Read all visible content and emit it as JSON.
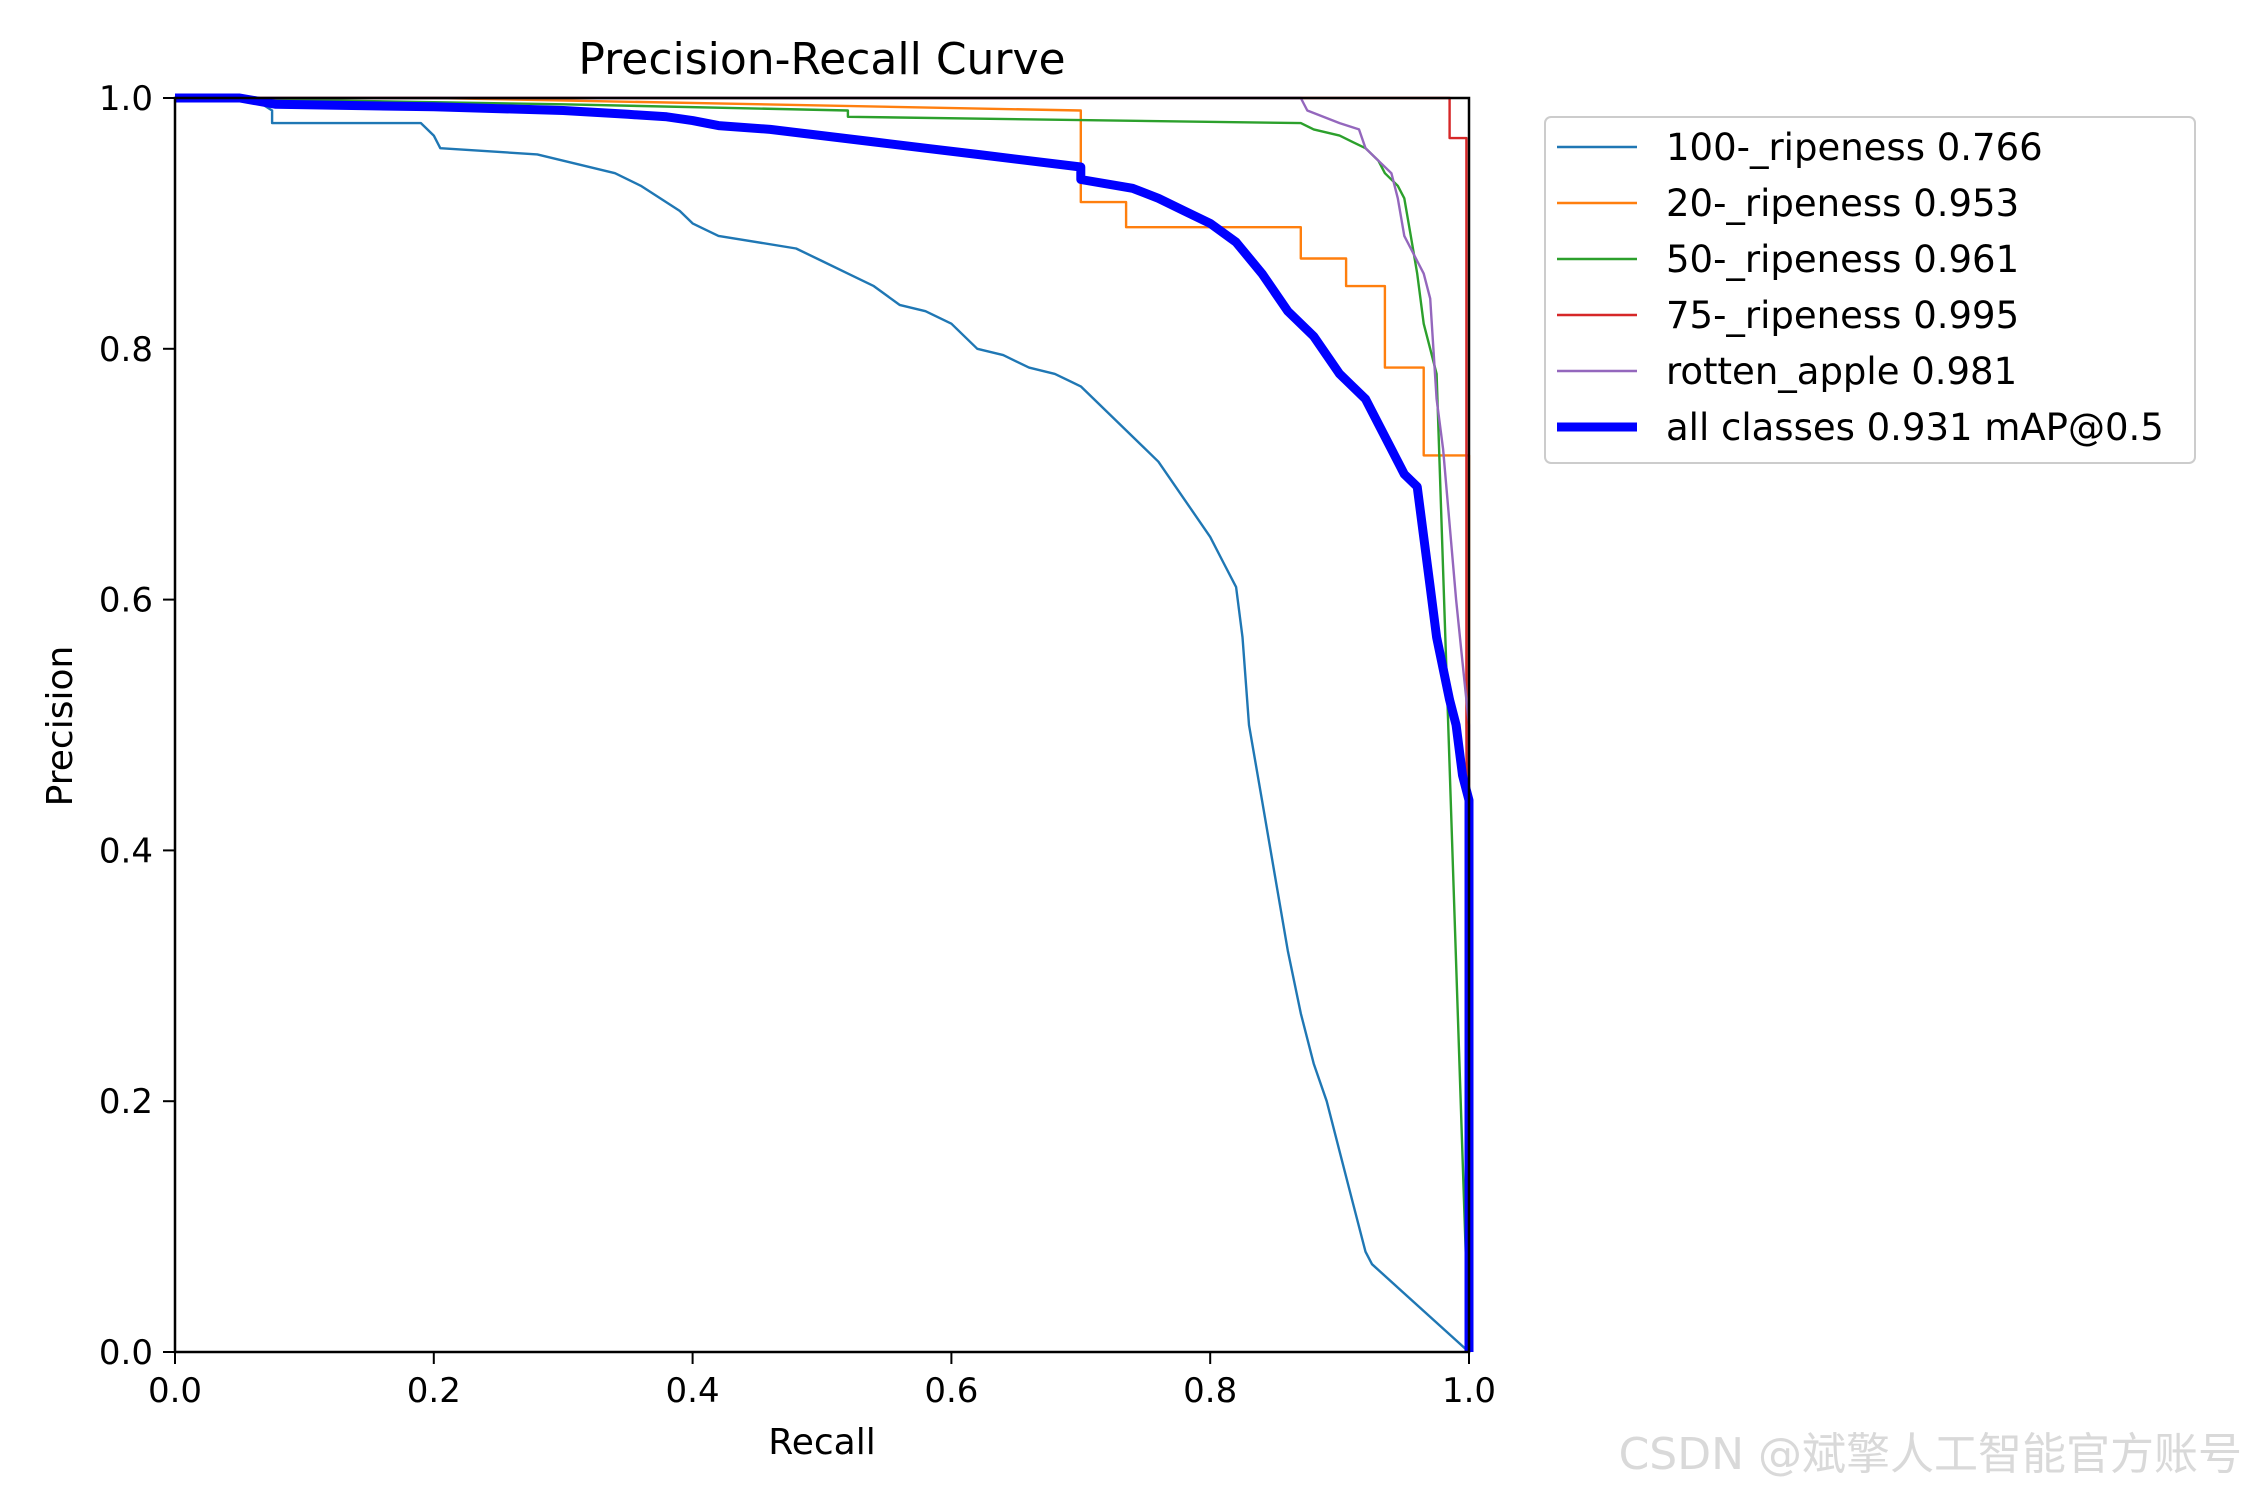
{
  "chart_data": {
    "type": "line",
    "title": "Precision-Recall Curve",
    "xlabel": "Recall",
    "ylabel": "Precision",
    "xlim": [
      0,
      1
    ],
    "ylim": [
      0,
      1
    ],
    "xticks": [
      "0.0",
      "0.2",
      "0.4",
      "0.6",
      "0.8",
      "1.0"
    ],
    "yticks": [
      "0.0",
      "0.2",
      "0.4",
      "0.6",
      "0.8",
      "1.0"
    ],
    "grid": false,
    "legend_position": "outside-right-top",
    "series": [
      {
        "name": "100-_ripeness 0.766",
        "color": "#1f77b4",
        "width": "thin",
        "x": [
          0,
          0.06,
          0.075,
          0.075,
          0.19,
          0.2,
          0.205,
          0.28,
          0.3,
          0.34,
          0.36,
          0.39,
          0.4,
          0.41,
          0.42,
          0.48,
          0.5,
          0.52,
          0.54,
          0.56,
          0.58,
          0.6,
          0.62,
          0.64,
          0.66,
          0.68,
          0.7,
          0.72,
          0.74,
          0.76,
          0.78,
          0.8,
          0.81,
          0.82,
          0.825,
          0.83,
          0.84,
          0.85,
          0.86,
          0.87,
          0.88,
          0.89,
          0.9,
          0.91,
          0.92,
          0.925,
          1.0
        ],
        "y": [
          1.0,
          1.0,
          0.99,
          0.98,
          0.98,
          0.97,
          0.96,
          0.955,
          0.95,
          0.94,
          0.93,
          0.91,
          0.9,
          0.895,
          0.89,
          0.88,
          0.87,
          0.86,
          0.85,
          0.835,
          0.83,
          0.82,
          0.8,
          0.795,
          0.785,
          0.78,
          0.77,
          0.75,
          0.73,
          0.71,
          0.68,
          0.65,
          0.63,
          0.61,
          0.57,
          0.5,
          0.44,
          0.38,
          0.32,
          0.27,
          0.23,
          0.2,
          0.16,
          0.12,
          0.08,
          0.07,
          0.0
        ]
      },
      {
        "name": "20-_ripeness 0.953",
        "color": "#ff7f0e",
        "width": "thin",
        "x": [
          0,
          0.2,
          0.7,
          0.7,
          0.735,
          0.735,
          0.87,
          0.87,
          0.905,
          0.905,
          0.935,
          0.935,
          0.965,
          0.965,
          0.995,
          0.995,
          1.0,
          1.0
        ],
        "y": [
          1.0,
          1.0,
          0.99,
          0.917,
          0.917,
          0.897,
          0.897,
          0.872,
          0.872,
          0.85,
          0.85,
          0.785,
          0.785,
          0.715,
          0.715,
          0.715,
          0.715,
          0.0
        ]
      },
      {
        "name": "50-_ripeness 0.961",
        "color": "#2ca02c",
        "width": "thin",
        "x": [
          0,
          0.3,
          0.52,
          0.52,
          0.87,
          0.88,
          0.9,
          0.91,
          0.92,
          0.93,
          0.935,
          0.945,
          0.95,
          0.955,
          0.96,
          0.965,
          0.97,
          0.975,
          1.0
        ],
        "y": [
          1.0,
          0.995,
          0.99,
          0.985,
          0.98,
          0.975,
          0.97,
          0.965,
          0.96,
          0.95,
          0.94,
          0.93,
          0.92,
          0.89,
          0.86,
          0.82,
          0.8,
          0.78,
          0.0
        ]
      },
      {
        "name": "75-_ripeness 0.995",
        "color": "#d62728",
        "width": "thin",
        "x": [
          0,
          0.985,
          0.985,
          0.998,
          0.998,
          1.0
        ],
        "y": [
          1.0,
          1.0,
          0.968,
          0.968,
          0.5,
          0.0
        ]
      },
      {
        "name": "rotten_apple 0.981",
        "color": "#9467bd",
        "width": "thin",
        "x": [
          0,
          0.87,
          0.875,
          0.9,
          0.915,
          0.92,
          0.93,
          0.94,
          0.945,
          0.95,
          0.955,
          0.96,
          0.965,
          0.97,
          0.975,
          0.98,
          0.985,
          0.99,
          0.995,
          1.0,
          1.0
        ],
        "y": [
          1.0,
          1.0,
          0.99,
          0.98,
          0.975,
          0.96,
          0.95,
          0.94,
          0.92,
          0.89,
          0.88,
          0.87,
          0.86,
          0.84,
          0.76,
          0.72,
          0.66,
          0.6,
          0.55,
          0.5,
          0.0
        ]
      },
      {
        "name": "all classes 0.931 mAP@0.5",
        "color": "#0000ff",
        "width": "thick",
        "x": [
          0,
          0.05,
          0.078,
          0.2,
          0.3,
          0.35,
          0.38,
          0.4,
          0.42,
          0.46,
          0.5,
          0.54,
          0.58,
          0.62,
          0.66,
          0.7,
          0.7,
          0.74,
          0.76,
          0.78,
          0.8,
          0.82,
          0.84,
          0.86,
          0.88,
          0.9,
          0.92,
          0.935,
          0.95,
          0.96,
          0.965,
          0.97,
          0.975,
          0.985,
          0.99,
          0.995,
          1.0,
          1.0
        ],
        "y": [
          1.0,
          1.0,
          0.995,
          0.993,
          0.99,
          0.987,
          0.985,
          0.982,
          0.978,
          0.975,
          0.97,
          0.965,
          0.96,
          0.955,
          0.95,
          0.945,
          0.935,
          0.928,
          0.92,
          0.91,
          0.9,
          0.885,
          0.86,
          0.83,
          0.81,
          0.78,
          0.76,
          0.73,
          0.7,
          0.69,
          0.65,
          0.61,
          0.57,
          0.52,
          0.5,
          0.46,
          0.44,
          0.0
        ]
      }
    ]
  },
  "watermark": "CSDN @斌擎人工智能官方账号"
}
